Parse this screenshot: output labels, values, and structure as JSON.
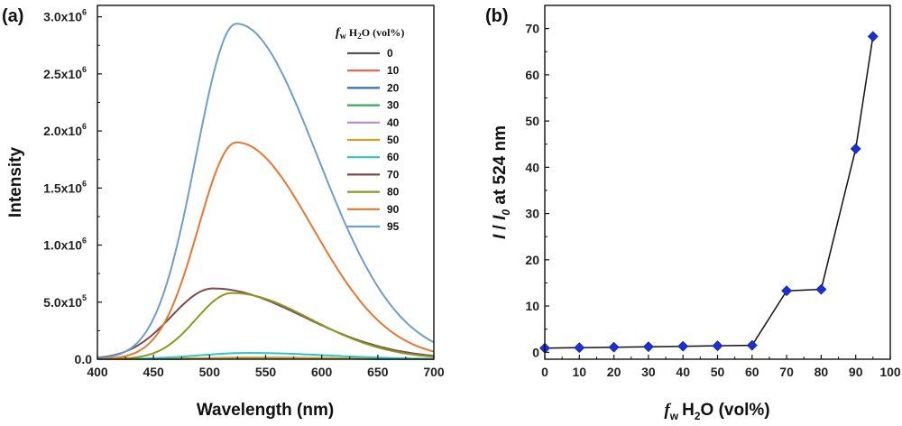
{
  "figure": {
    "panel_a_label": "(a)",
    "panel_b_label": "(b)"
  },
  "chart_data": [
    {
      "type": "line",
      "panel": "a",
      "xlabel": "Wavelength (nm)",
      "ylabel": "Intensity",
      "xlim": [
        400,
        700
      ],
      "ylim": [
        0,
        3100000
      ],
      "x_ticks": [
        "400",
        "450",
        "500",
        "550",
        "600",
        "650",
        "700"
      ],
      "y_ticks": [
        {
          "mantissa": "0.0",
          "exp": ""
        },
        {
          "mantissa": "5.0x10",
          "exp": "5"
        },
        {
          "mantissa": "1.0x10",
          "exp": "6"
        },
        {
          "mantissa": "1.5x10",
          "exp": "6"
        },
        {
          "mantissa": "2.0x10",
          "exp": "6"
        },
        {
          "mantissa": "2.5x10",
          "exp": "6"
        },
        {
          "mantissa": "3.0x10",
          "exp": "6"
        }
      ],
      "legend": {
        "title_f": "f",
        "title_w": "w",
        "title_h": "H",
        "title_2": "2",
        "title_rest": "O (vol%)",
        "placement": "top-right"
      },
      "series": [
        {
          "name": "0",
          "color": "#555555",
          "peak_nm": 540,
          "peak": 8000,
          "sigma_left": 45,
          "sigma_right": 70
        },
        {
          "name": "10",
          "color": "#e8604c",
          "peak_nm": 540,
          "peak": 9000,
          "sigma_left": 45,
          "sigma_right": 70
        },
        {
          "name": "20",
          "color": "#2f6db5",
          "peak_nm": 540,
          "peak": 10000,
          "sigma_left": 45,
          "sigma_right": 70
        },
        {
          "name": "30",
          "color": "#33a85a",
          "peak_nm": 540,
          "peak": 12000,
          "sigma_left": 45,
          "sigma_right": 70
        },
        {
          "name": "40",
          "color": "#b88ad6",
          "peak_nm": 540,
          "peak": 14000,
          "sigma_left": 45,
          "sigma_right": 70
        },
        {
          "name": "50",
          "color": "#c9a227",
          "peak_nm": 540,
          "peak": 15000,
          "sigma_left": 45,
          "sigma_right": 70
        },
        {
          "name": "60",
          "color": "#2fc4c4",
          "peak_nm": 535,
          "peak": 55000,
          "sigma_left": 45,
          "sigma_right": 70
        },
        {
          "name": "70",
          "color": "#7b4b4b",
          "peak_nm": 503,
          "peak": 620000,
          "sigma_left": 37,
          "sigma_right": 80
        },
        {
          "name": "80",
          "color": "#8a9a1e",
          "peak_nm": 520,
          "peak": 580000,
          "sigma_left": 32,
          "sigma_right": 70
        },
        {
          "name": "90",
          "color": "#e8772e",
          "peak_nm": 524,
          "peak": 1900000,
          "sigma_left": 34,
          "sigma_right": 68
        },
        {
          "name": "95",
          "color": "#6f9fc9",
          "peak_nm": 524,
          "peak": 2940000,
          "sigma_left": 36,
          "sigma_right": 72
        }
      ]
    },
    {
      "type": "line",
      "panel": "b",
      "xlabel_f": "f",
      "xlabel_w": "w",
      "xlabel_rest": "H",
      "xlabel_2": "2",
      "xlabel_tail": "O (vol%)",
      "ylabel_I": "I",
      "ylabel_slash": " / ",
      "ylabel_I0": "I",
      "ylabel_0": "0",
      "ylabel_tail": " at 524 nm",
      "xlim": [
        0,
        100
      ],
      "ylim": [
        -1.5,
        75
      ],
      "x_ticks": [
        "0",
        "10",
        "20",
        "30",
        "40",
        "50",
        "60",
        "70",
        "80",
        "90",
        "100"
      ],
      "y_ticks": [
        "0",
        "10",
        "20",
        "30",
        "40",
        "50",
        "60",
        "70"
      ],
      "marker_color": "#1a2fd6",
      "x": [
        0,
        10,
        20,
        30,
        40,
        50,
        60,
        70,
        80,
        90,
        95
      ],
      "y": [
        0.9,
        1.0,
        1.1,
        1.2,
        1.3,
        1.4,
        1.5,
        13.3,
        13.6,
        44.0,
        68.3
      ]
    }
  ]
}
